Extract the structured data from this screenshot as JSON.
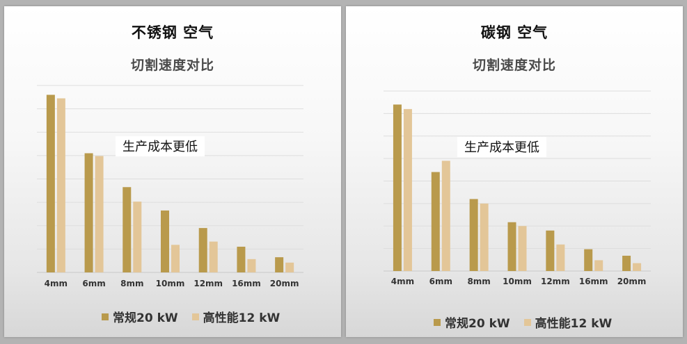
{
  "colors": {
    "series_a": "#b99a4c",
    "series_b": "#e3c698"
  },
  "chart_data": [
    {
      "type": "bar",
      "title": "不锈钢  空气",
      "subtitle": "切割速度对比",
      "annotation": "生产成本更低",
      "categories": [
        "4mm",
        "6mm",
        "8mm",
        "10mm",
        "12mm",
        "16mm",
        "20mm"
      ],
      "series": [
        {
          "name": "常规20 kW",
          "values": [
            7.6,
            5.1,
            3.65,
            2.65,
            1.9,
            1.1,
            0.65
          ]
        },
        {
          "name": "高性能12 kW",
          "values": [
            7.45,
            4.98,
            3.03,
            1.18,
            1.32,
            0.57,
            0.42
          ]
        }
      ],
      "ylim": [
        0,
        8
      ],
      "grid": true,
      "legend": "bottom"
    },
    {
      "type": "bar",
      "title": "碳钢  空气",
      "subtitle": "切割速度对比",
      "annotation": "生产成本更低",
      "categories": [
        "4mm",
        "6mm",
        "8mm",
        "10mm",
        "12mm",
        "16mm",
        "20mm"
      ],
      "series": [
        {
          "name": "常规20 kW",
          "values": [
            7.4,
            4.4,
            3.2,
            2.17,
            1.8,
            0.97,
            0.68
          ]
        },
        {
          "name": "高性能12 kW",
          "values": [
            7.2,
            4.9,
            3.0,
            2.0,
            1.18,
            0.48,
            0.35
          ]
        }
      ],
      "ylim": [
        0,
        8
      ],
      "grid": true,
      "legend": "bottom"
    }
  ]
}
